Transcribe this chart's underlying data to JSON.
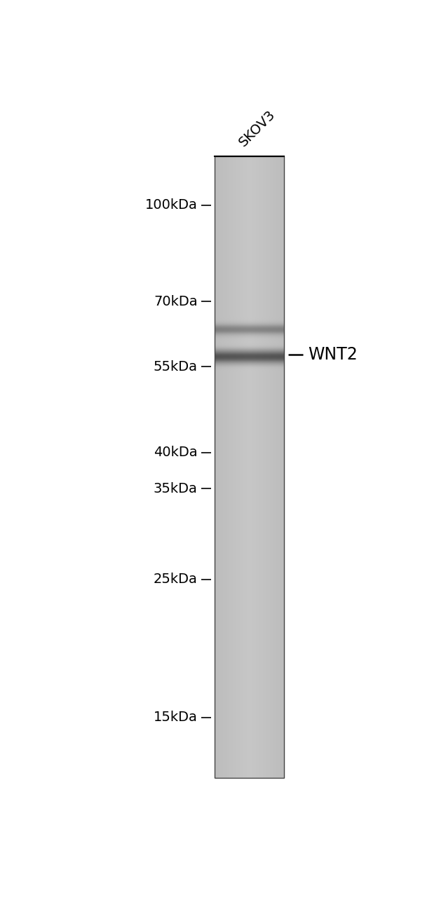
{
  "bg_color": "#ffffff",
  "marker_labels": [
    "100kDa",
    "70kDa",
    "55kDa",
    "40kDa",
    "35kDa",
    "25kDa",
    "15kDa"
  ],
  "marker_kda": [
    100,
    70,
    55,
    40,
    35,
    25,
    15
  ],
  "band_kda": 57,
  "band2_kda": 63,
  "band_label": "WNT2",
  "sample_label": "SKOV3",
  "kda_min": 12,
  "kda_max": 120,
  "label_fontsize": 14,
  "marker_fontsize": 14,
  "wnt2_fontsize": 17
}
